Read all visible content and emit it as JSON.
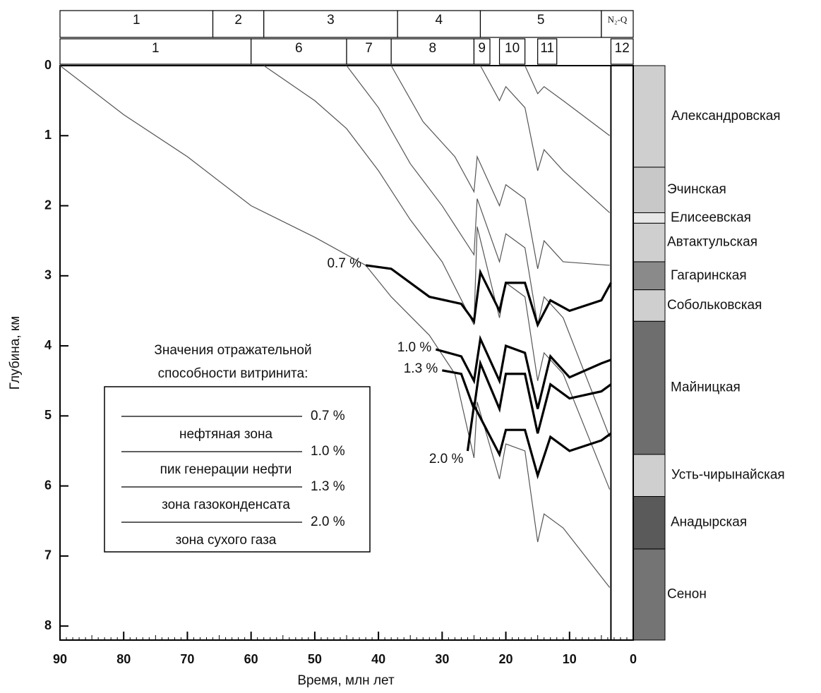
{
  "chart_data": {
    "type": "line",
    "x_label": "Время, млн лет",
    "y_label": "Глубина, км",
    "xlim": [
      90,
      0
    ],
    "ylim": [
      0,
      8.2
    ],
    "xticks": [
      90,
      80,
      70,
      60,
      50,
      40,
      30,
      20,
      10,
      0
    ],
    "yticks": [
      0,
      1,
      2,
      3,
      4,
      5,
      6,
      7,
      8
    ],
    "present_line": 3.5,
    "stage_row1": [
      {
        "label": "1",
        "start": 90,
        "end": 66
      },
      {
        "label": "2",
        "start": 66,
        "end": 58
      },
      {
        "label": "3",
        "start": 58,
        "end": 37
      },
      {
        "label": "4",
        "start": 37,
        "end": 24
      },
      {
        "label": "5",
        "start": 24,
        "end": 5
      },
      {
        "label": "N₂-Q",
        "start": 5,
        "end": 0
      }
    ],
    "stage_row2": [
      {
        "label": "1",
        "start": 90,
        "end": 60
      },
      {
        "label": "6",
        "start": 60,
        "end": 45
      },
      {
        "label": "7",
        "start": 45,
        "end": 38
      },
      {
        "label": "8",
        "start": 38,
        "end": 25
      },
      {
        "label": "9",
        "start": 25,
        "end": 22.5
      },
      {
        "label": "10",
        "start": 21,
        "end": 17
      },
      {
        "label": "11",
        "start": 15,
        "end": 12
      },
      {
        "label": "12",
        "start": 3.5,
        "end": 0
      }
    ],
    "formations": [
      {
        "name": "Александровская",
        "top": 0,
        "bottom": 1.45,
        "color": "#cfcfcf"
      },
      {
        "name": "Эчинская",
        "top": 1.45,
        "bottom": 2.1,
        "color": "#c8c8c8"
      },
      {
        "name": "Елисеевская",
        "top": 2.1,
        "bottom": 2.25,
        "color": "#e8e8e8"
      },
      {
        "name": "Автактульская",
        "top": 2.25,
        "bottom": 2.8,
        "color": "#cfcfcf"
      },
      {
        "name": "Гагаринская",
        "top": 2.8,
        "bottom": 3.2,
        "color": "#8a8a8a"
      },
      {
        "name": "Собольковская",
        "top": 3.2,
        "bottom": 3.65,
        "color": "#cfcfcf"
      },
      {
        "name": "Майницкая",
        "top": 3.65,
        "bottom": 5.55,
        "color": "#6e6e6e"
      },
      {
        "name": "Усть-чирынайская",
        "top": 5.55,
        "bottom": 6.15,
        "color": "#cfcfcf"
      },
      {
        "name": "Анадырская",
        "top": 6.15,
        "bottom": 6.9,
        "color": "#5a5a5a"
      },
      {
        "name": "Сенон",
        "top": 6.9,
        "bottom": 8.2,
        "color": "#747474"
      }
    ],
    "burial": [
      {
        "color": "#555",
        "x": [
          90,
          80,
          70,
          60,
          50,
          42,
          38,
          32,
          28,
          25,
          24.5,
          21,
          20,
          17,
          15,
          14,
          11,
          3.7
        ],
        "values": [
          0,
          0.7,
          1.3,
          2.0,
          2.45,
          2.85,
          3.3,
          3.85,
          4.4,
          5.6,
          4.8,
          5.9,
          5.4,
          5.5,
          6.8,
          6.4,
          6.6,
          7.45
        ]
      },
      {
        "color": "#555",
        "x": [
          58,
          50,
          45,
          40,
          35,
          30,
          25,
          24.5,
          21,
          20,
          17,
          15,
          14,
          11,
          3.7
        ],
        "values": [
          0,
          0.5,
          0.9,
          1.5,
          2.2,
          2.8,
          3.7,
          2.3,
          3.6,
          3.1,
          3.3,
          4.5,
          4.1,
          4.4,
          6.05
        ]
      },
      {
        "color": "#555",
        "x": [
          45,
          40,
          35,
          30,
          25,
          24.5,
          21,
          20,
          17,
          15,
          14,
          11,
          3.7
        ],
        "values": [
          0,
          0.6,
          1.4,
          2.0,
          2.7,
          1.9,
          2.8,
          2.4,
          2.6,
          3.7,
          3.3,
          3.6,
          5.3
        ]
      },
      {
        "color": "#555",
        "x": [
          38,
          33,
          28,
          25,
          24.5,
          21,
          20,
          17,
          15,
          14,
          11,
          3.7
        ],
        "values": [
          0,
          0.8,
          1.3,
          1.8,
          1.3,
          2.0,
          1.7,
          1.9,
          2.9,
          2.5,
          2.8,
          2.85
        ]
      },
      {
        "color": "#555",
        "x": [
          24,
          21,
          20,
          17,
          15,
          14,
          11,
          3.7
        ],
        "values": [
          0,
          0.5,
          0.3,
          0.6,
          1.5,
          1.2,
          1.5,
          2.1
        ]
      },
      {
        "color": "#555",
        "x": [
          17,
          15,
          14,
          11,
          3.7
        ],
        "values": [
          0,
          0.4,
          0.3,
          0.5,
          1.0
        ]
      }
    ],
    "series": [
      {
        "name": "0.7 %",
        "color": "#000",
        "x": [
          42,
          38,
          32,
          27,
          25,
          24,
          21,
          20,
          17,
          15,
          13,
          10,
          5,
          3.5
        ],
        "values": [
          2.85,
          2.9,
          3.3,
          3.4,
          3.65,
          2.95,
          3.5,
          3.1,
          3.1,
          3.7,
          3.35,
          3.5,
          3.35,
          3.1
        ]
      },
      {
        "name": "1.0 %",
        "color": "#000",
        "x": [
          31,
          27,
          25,
          24,
          21,
          20,
          17,
          15,
          13,
          10,
          5,
          3.5
        ],
        "values": [
          4.05,
          4.15,
          4.5,
          3.9,
          4.5,
          4.0,
          4.1,
          4.9,
          4.15,
          4.45,
          4.25,
          4.2
        ]
      },
      {
        "name": "1.3 %",
        "color": "#000",
        "x": [
          30,
          27,
          25,
          24,
          21,
          20,
          17,
          15,
          13,
          10,
          5,
          3.5
        ],
        "values": [
          4.35,
          4.4,
          4.9,
          4.25,
          4.9,
          4.4,
          4.4,
          5.25,
          4.55,
          4.75,
          4.65,
          4.55
        ]
      },
      {
        "name": "2.0 %",
        "color": "#000",
        "x": [
          26,
          25,
          21,
          20,
          17,
          15,
          13,
          10,
          5,
          3.5
        ],
        "values": [
          5.5,
          4.85,
          5.55,
          5.2,
          5.2,
          5.85,
          5.3,
          5.5,
          5.35,
          5.25
        ]
      }
    ],
    "legend": {
      "title": [
        "Значения отражательной",
        "способности витринита:"
      ],
      "levels": [
        "0.7 %",
        "1.0 %",
        "1.3 %",
        "2.0 %"
      ],
      "zones": [
        "нефтяная зона",
        "пик генерации нефти",
        "зона газоконденсата",
        "зона сухого газа"
      ]
    }
  }
}
